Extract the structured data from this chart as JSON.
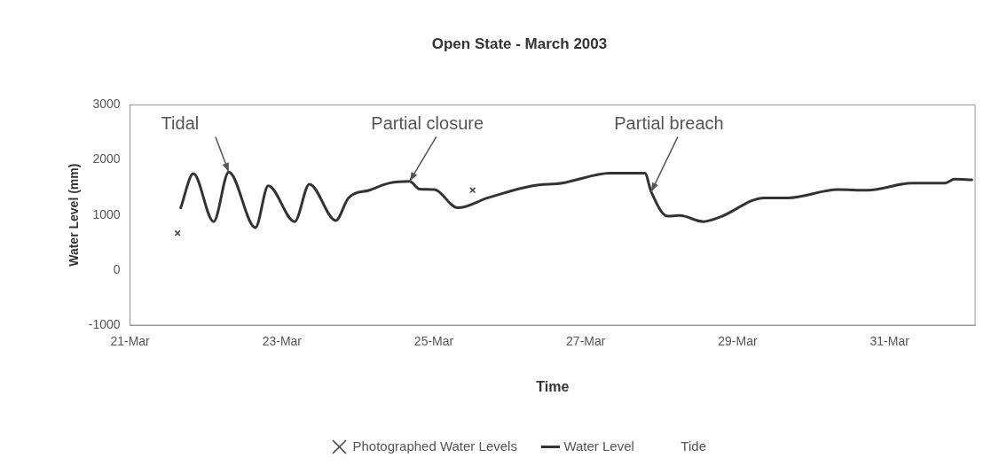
{
  "chart_data": {
    "type": "line",
    "title": "Open State - March 2003",
    "xlabel": "Time",
    "ylabel": "Water Level (mm)",
    "xlim": [
      "2003-03-21",
      "2003-04-01T03:00"
    ],
    "xticks": [
      {
        "value": "2003-03-21",
        "label": "21-Mar"
      },
      {
        "value": "2003-03-23",
        "label": "23-Mar"
      },
      {
        "value": "2003-03-25",
        "label": "25-Mar"
      },
      {
        "value": "2003-03-27",
        "label": "27-Mar"
      },
      {
        "value": "2003-03-29",
        "label": "29-Mar"
      },
      {
        "value": "2003-03-31",
        "label": "31-Mar"
      }
    ],
    "ylim": [
      -1000,
      3000
    ],
    "yticks": [
      -1000,
      0,
      1000,
      2000,
      3000
    ],
    "grid": false,
    "legend": "bottom",
    "series": [
      {
        "name": "Photographed Water Levels",
        "type": "scatter",
        "marker": "cross",
        "color": "#444444",
        "x": [
          "2003-03-21T15:00",
          "2003-03-25T12:15"
        ],
        "values": [
          670,
          1450
        ]
      },
      {
        "name": "Water Level",
        "color": "#333333",
        "line_style": "solid",
        "x": [
          "2003-03-21T16:00",
          "2003-03-21T20:00",
          "2003-03-22T02:24",
          "2003-03-22T07:12",
          "2003-03-22T15:36",
          "2003-03-22T19:40",
          "2003-03-23T04:00",
          "2003-03-23T08:40",
          "2003-03-23T17:00",
          "2003-03-23T21:00",
          "2003-03-24T03:36",
          "2003-03-24T10:00",
          "2003-03-24T16:20",
          "2003-03-24T19:30",
          "2003-03-25T00:12",
          "2003-03-25T07:30",
          "2003-03-25T17:00",
          "2003-03-26T07:10",
          "2003-03-26T16:30",
          "2003-03-27T07:40",
          "2003-03-27T18:40",
          "2003-03-27T20:40",
          "2003-03-28T01:50",
          "2003-03-28T05:40",
          "2003-03-28T13:10",
          "2003-03-28T18:20",
          "2003-03-29T08:20",
          "2003-03-29T15:50",
          "2003-03-30T07:40",
          "2003-03-30T17:00",
          "2003-03-31T07:10",
          "2003-03-31T17:30",
          "2003-03-31T20:30",
          "2003-04-01T02:00"
        ],
        "values": [
          1130,
          1750,
          880,
          1780,
          770,
          1530,
          880,
          1560,
          900,
          1310,
          1450,
          1580,
          1610,
          1470,
          1460,
          1130,
          1310,
          1530,
          1580,
          1760,
          1760,
          1420,
          980,
          990,
          880,
          960,
          1310,
          1310,
          1460,
          1450,
          1580,
          1580,
          1650,
          1640
        ]
      },
      {
        "name": "Tide"
      }
    ],
    "annotations": [
      {
        "text": "Tidal",
        "x": "2003-03-22T07:12",
        "y": 1780
      },
      {
        "text": "Partial closure",
        "x": "2003-03-24T16:20",
        "y": 1610
      },
      {
        "text": "Partial breach",
        "x": "2003-03-27T20:40",
        "y": 1420
      }
    ]
  }
}
